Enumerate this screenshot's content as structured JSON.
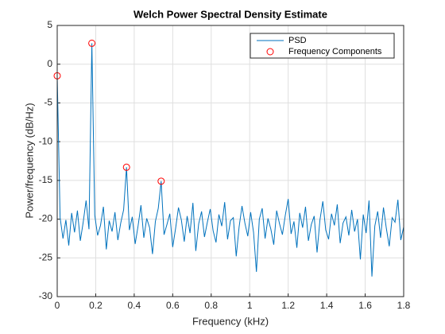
{
  "chart_data": {
    "type": "line",
    "title": "Welch Power Spectral Density Estimate",
    "x_label": "Frequency (kHz)",
    "y_label": "Power/frequency (dB/Hz)",
    "xlim": [
      0,
      1.8
    ],
    "xticks": [
      0,
      0.2,
      0.4,
      0.6,
      0.8,
      1,
      1.2,
      1.4,
      1.6,
      1.8
    ],
    "ylim": [
      -30,
      5
    ],
    "yticks": [
      -30,
      -25,
      -20,
      -15,
      -10,
      -5,
      0,
      5
    ],
    "grid": true,
    "legend": "top-right",
    "series": [
      {
        "name": "PSD",
        "type": "line",
        "color": "#0072bd",
        "x": [
          0,
          0.015,
          0.03,
          0.045,
          0.06,
          0.075,
          0.09,
          0.105,
          0.12,
          0.135,
          0.15,
          0.165,
          0.18,
          0.195,
          0.21,
          0.225,
          0.24,
          0.255,
          0.27,
          0.285,
          0.3,
          0.315,
          0.33,
          0.345,
          0.36,
          0.375,
          0.39,
          0.405,
          0.42,
          0.435,
          0.45,
          0.465,
          0.48,
          0.495,
          0.51,
          0.525,
          0.54,
          0.555,
          0.57,
          0.585,
          0.6,
          0.615,
          0.63,
          0.645,
          0.66,
          0.675,
          0.69,
          0.705,
          0.72,
          0.735,
          0.75,
          0.765,
          0.78,
          0.795,
          0.81,
          0.825,
          0.84,
          0.855,
          0.87,
          0.885,
          0.9,
          0.915,
          0.93,
          0.945,
          0.96,
          0.975,
          0.99,
          1.005,
          1.02,
          1.035,
          1.05,
          1.065,
          1.08,
          1.095,
          1.11,
          1.125,
          1.14,
          1.155,
          1.17,
          1.185,
          1.2,
          1.215,
          1.23,
          1.245,
          1.26,
          1.275,
          1.29,
          1.305,
          1.32,
          1.335,
          1.35,
          1.365,
          1.38,
          1.395,
          1.41,
          1.425,
          1.44,
          1.455,
          1.47,
          1.485,
          1.5,
          1.515,
          1.53,
          1.545,
          1.56,
          1.575,
          1.59,
          1.605,
          1.62,
          1.635,
          1.65,
          1.665,
          1.68,
          1.695,
          1.71,
          1.725,
          1.74,
          1.755,
          1.77,
          1.785,
          1.8
        ],
        "values": [
          -1.5,
          -19.8,
          -22.5,
          -20.1,
          -23.4,
          -19.2,
          -21.7,
          -18.9,
          -22.8,
          -20.4,
          -17.6,
          -21.3,
          2.7,
          -19.5,
          -22.1,
          -20.8,
          -18.4,
          -23.9,
          -20.2,
          -21.6,
          -19.1,
          -22.7,
          -20.5,
          -18.8,
          -13.3,
          -21.4,
          -19.7,
          -23.2,
          -20.9,
          -18.2,
          -22.4,
          -19.9,
          -21.1,
          -24.5,
          -20.3,
          -18.6,
          -15.1,
          -22.0,
          -20.7,
          -19.3,
          -23.6,
          -21.2,
          -18.5,
          -20.1,
          -22.9,
          -19.6,
          -21.8,
          -17.9,
          -24.1,
          -20.6,
          -19.0,
          -22.3,
          -20.4,
          -18.7,
          -21.5,
          -23.0,
          -19.4,
          -20.9,
          -17.8,
          -22.6,
          -20.2,
          -19.8,
          -24.8,
          -21.0,
          -18.3,
          -20.5,
          -22.2,
          -19.1,
          -21.7,
          -26.8,
          -20.0,
          -18.6,
          -22.5,
          -19.9,
          -21.3,
          -23.3,
          -18.9,
          -20.6,
          -22.0,
          -19.5,
          -17.4,
          -21.9,
          -20.3,
          -23.7,
          -19.2,
          -21.1,
          -18.4,
          -22.8,
          -20.7,
          -19.6,
          -24.3,
          -20.1,
          -17.7,
          -21.4,
          -22.6,
          -19.3,
          -20.8,
          -18.1,
          -23.1,
          -20.5,
          -19.7,
          -22.1,
          -18.8,
          -21.6,
          -20.0,
          -25.2,
          -19.4,
          -21.8,
          -17.6,
          -27.4,
          -20.9,
          -19.0,
          -22.4,
          -18.5,
          -21.2,
          -23.5,
          -19.8,
          -20.4,
          -17.5,
          -22.7,
          -21.0
        ]
      },
      {
        "name": "Frequency Components",
        "type": "scatter",
        "color": "#ff0000",
        "x": [
          0,
          0.18,
          0.36,
          0.54
        ],
        "values": [
          -1.5,
          2.7,
          -13.3,
          -15.1
        ]
      }
    ]
  }
}
